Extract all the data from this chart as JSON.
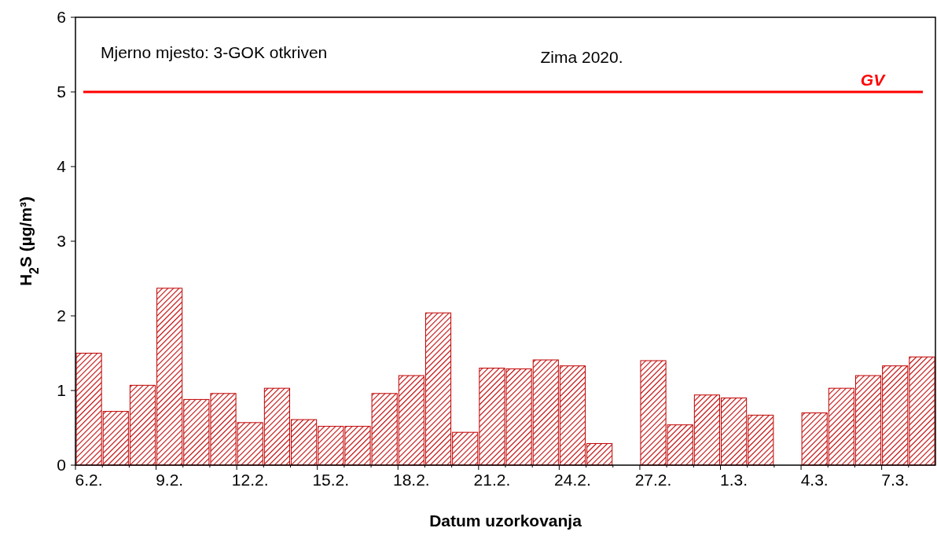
{
  "chart_data": {
    "type": "bar",
    "xlabel": "Datum uzorkovanja",
    "ylabel": "H$_{2}$S (µg/m³)",
    "categories": [
      "6.2.",
      null,
      null,
      "9.2.",
      null,
      null,
      "12.2.",
      null,
      null,
      "15.2.",
      null,
      null,
      "18.2.",
      null,
      null,
      "21.2.",
      null,
      null,
      "24.2.",
      null,
      null,
      "27.2.",
      null,
      null,
      "1.3.",
      null,
      null,
      "4.3.",
      null,
      null,
      "7.3.",
      null
    ],
    "series": [
      {
        "color": "#c00000",
        "values": [
          1.5,
          0.72,
          1.07,
          2.37,
          0.88,
          0.96,
          0.57,
          1.03,
          0.61,
          0.52,
          0.52,
          0.96,
          1.2,
          2.04,
          0.44,
          1.3,
          1.29,
          1.41,
          1.33,
          0.29,
          null,
          1.4,
          0.54,
          0.94,
          0.9,
          0.67,
          null,
          0.7,
          1.03,
          1.2,
          1.33,
          1.45
        ]
      }
    ],
    "ylim": [
      0,
      6
    ],
    "yticks": [
      0,
      1,
      2,
      3,
      4,
      5,
      6
    ],
    "grid": false,
    "ref_lines": [
      {
        "axis": "y",
        "value": 5,
        "label": "GV",
        "color": "#ff0000"
      }
    ],
    "annotations": [
      "Mjerno mjesto: 3-GOK otkriven",
      "Zima 2020."
    ]
  }
}
